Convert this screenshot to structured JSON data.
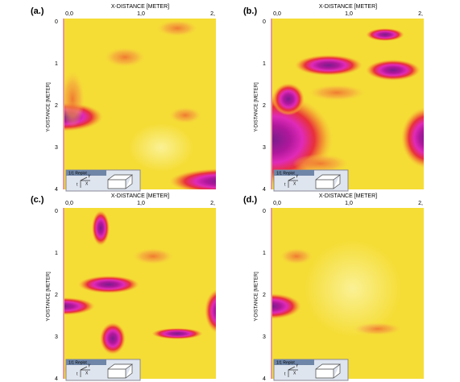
{
  "panels": [
    {
      "label": "(a.)",
      "x_axis_title": "X-DISTANCE [METER]",
      "x_ticks": [
        "0,0",
        "1,0",
        "2,"
      ],
      "y_axis_title": "Y-DISTANCE [METER]",
      "y_ticks": [
        "0",
        "1",
        "2",
        "3",
        "4"
      ],
      "inset": {
        "title": "1/1 Replot",
        "axes": [
          "Y",
          "X",
          "t"
        ]
      }
    },
    {
      "label": "(b.)",
      "x_axis_title": "X-DISTANCE [METER]",
      "x_ticks": [
        "0,0",
        "1,0",
        "2,"
      ],
      "y_axis_title": "Y-DISTANCE [METER]",
      "y_ticks": [
        "0",
        "1",
        "2",
        "3",
        "4"
      ],
      "inset": {
        "title": "1/1 Replot",
        "axes": [
          "Y",
          "X",
          "t"
        ]
      }
    },
    {
      "label": "(c.)",
      "x_axis_title": "X-DISTANCE [METER]",
      "x_ticks": [
        "0,0",
        "1,0",
        "2,"
      ],
      "y_axis_title": "Y-DISTANCE [METER]",
      "y_ticks": [
        "0",
        "1",
        "2",
        "3",
        "4"
      ],
      "inset": {
        "title": "1/1 Replot",
        "axes": [
          "Y",
          "X",
          "t"
        ]
      }
    },
    {
      "label": "(d.)",
      "x_axis_title": "X-DISTANCE [METER]",
      "x_ticks": [
        "0,0",
        "1,0",
        "2,"
      ],
      "y_axis_title": "Y-DISTANCE [METER]",
      "y_ticks": [
        "0",
        "1",
        "2",
        "3",
        "4"
      ],
      "inset": {
        "title": "1/1 Replot",
        "axes": [
          "Y",
          "X",
          "t"
        ]
      }
    }
  ]
}
